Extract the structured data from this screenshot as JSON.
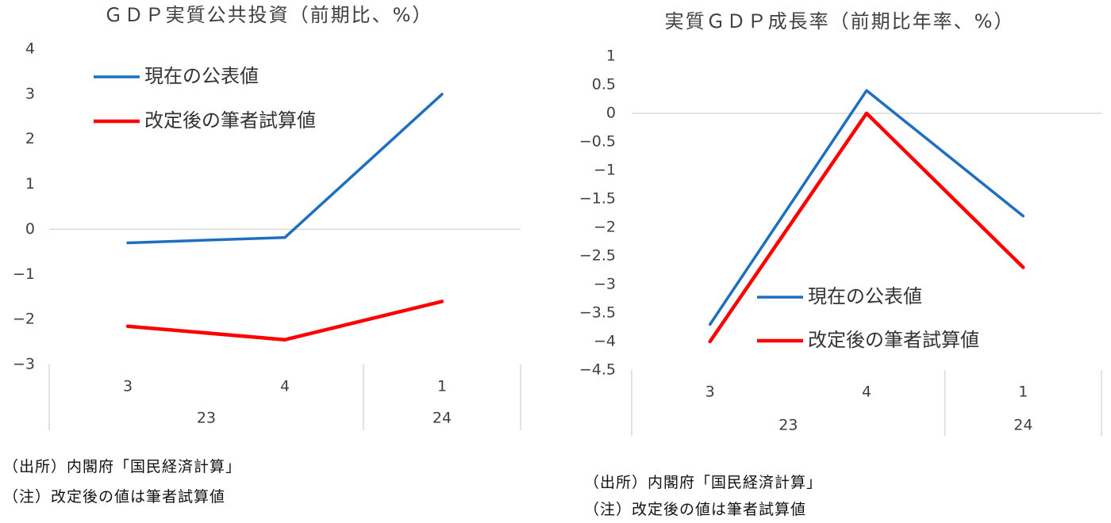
{
  "chart_data": [
    {
      "type": "line",
      "title": "ＧＤＰ実質公共投資（前期比、%）",
      "categories": [
        {
          "quarter": "3",
          "year": "23"
        },
        {
          "quarter": "4",
          "year": "23"
        },
        {
          "quarter": "1",
          "year": "24"
        }
      ],
      "category_groups": [
        {
          "label": "23",
          "span": 2
        },
        {
          "label": "24",
          "span": 1
        }
      ],
      "series": [
        {
          "name": "現在の公表値",
          "color": "#1f6fbf",
          "values": [
            -0.3,
            -0.18,
            3.0
          ]
        },
        {
          "name": "改定後の筆者試算値",
          "color": "#ff0000",
          "values": [
            -2.15,
            -2.45,
            -1.6
          ]
        }
      ],
      "ylim": [
        -3,
        4
      ],
      "yticks": [
        4,
        3,
        2,
        1,
        0,
        -1,
        -2,
        -3
      ],
      "ytick_labels": [
        "4",
        "3",
        "2",
        "1",
        "0",
        "−1",
        "−2",
        "−3"
      ],
      "legend_position": "top-left",
      "grid": false
    },
    {
      "type": "line",
      "title": "実質ＧＤＰ成長率（前期比年率、%）",
      "categories": [
        {
          "quarter": "3",
          "year": "23"
        },
        {
          "quarter": "4",
          "year": "23"
        },
        {
          "quarter": "1",
          "year": "24"
        }
      ],
      "category_groups": [
        {
          "label": "23",
          "span": 2
        },
        {
          "label": "24",
          "span": 1
        }
      ],
      "series": [
        {
          "name": "現在の公表値",
          "color": "#1f6fbf",
          "values": [
            -3.7,
            0.4,
            -1.8
          ]
        },
        {
          "name": "改定後の筆者試算値",
          "color": "#ff0000",
          "values": [
            -4.0,
            0.0,
            -2.7
          ]
        }
      ],
      "ylim": [
        -4.5,
        1
      ],
      "yticks": [
        1,
        0.5,
        0,
        -0.5,
        -1,
        -1.5,
        -2,
        -2.5,
        -3,
        -3.5,
        -4,
        -4.5
      ],
      "ytick_labels": [
        "1",
        "0.5",
        "0",
        "−0.5",
        "−1",
        "−1.5",
        "−2",
        "−2.5",
        "−3",
        "−3.5",
        "−4",
        "−4.5"
      ],
      "legend_position": "bottom-center",
      "grid": false
    }
  ],
  "notes": [
    {
      "source": "（出所）内閣府「国民経済計算」",
      "note": "（注）改定後の値は筆者試算値"
    },
    {
      "source": "（出所）内閣府「国民経済計算」",
      "note": "（注）改定後の値は筆者試算値"
    }
  ]
}
